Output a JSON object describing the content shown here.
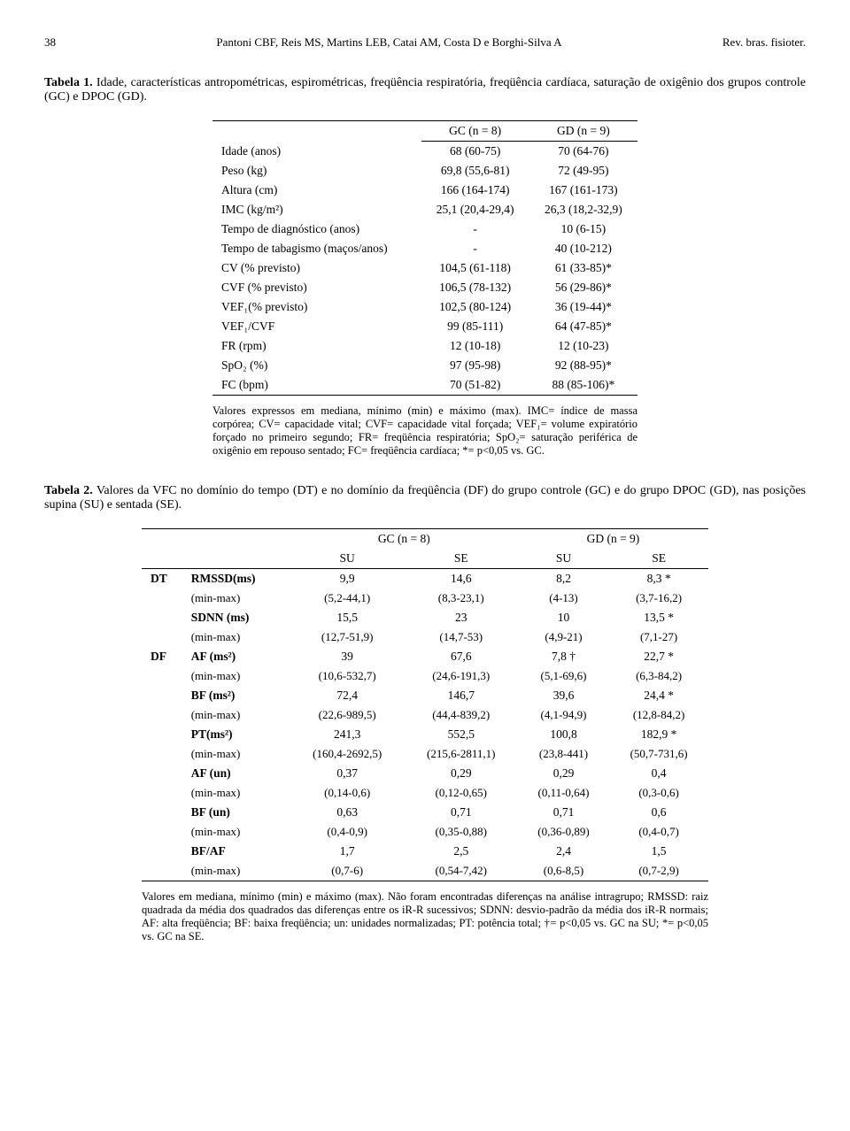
{
  "header": {
    "page_number": "38",
    "authors": "Pantoni CBF, Reis MS, Martins LEB, Catai AM, Costa D e Borghi-Silva A",
    "journal": "Rev. bras. fisioter."
  },
  "table1": {
    "label": "Tabela 1.",
    "caption": "Idade, características antropométricas, espirométricas, freqüência respiratória, freqüência cardíaca, saturação de oxigênio dos grupos controle (GC) e DPOC (GD).",
    "col_gc": "GC (n = 8)",
    "col_gd": "GD (n = 9)",
    "rows": [
      {
        "label": "Idade (anos)",
        "gc": "68 (60-75)",
        "gd": "70 (64-76)"
      },
      {
        "label": "Peso (kg)",
        "gc": "69,8 (55,6-81)",
        "gd": "72 (49-95)"
      },
      {
        "label": "Altura (cm)",
        "gc": "166 (164-174)",
        "gd": "167 (161-173)"
      },
      {
        "label": "IMC (kg/m²)",
        "gc": "25,1 (20,4-29,4)",
        "gd": "26,3 (18,2-32,9)"
      },
      {
        "label": "Tempo de diagnóstico (anos)",
        "gc": "-",
        "gd": "10 (6-15)"
      },
      {
        "label": "Tempo de tabagismo (maços/anos)",
        "gc": "-",
        "gd": "40 (10-212)"
      },
      {
        "label": "CV (% previsto)",
        "gc": "104,5 (61-118)",
        "gd": "61 (33-85)*"
      },
      {
        "label": "CVF (% previsto)",
        "gc": "106,5 (78-132)",
        "gd": "56 (29-86)*"
      },
      {
        "label": "VEF₁(% previsto)",
        "gc": "102,5 (80-124)",
        "gd": "36 (19-44)*"
      },
      {
        "label": "VEF₁/CVF",
        "gc": "99 (85-111)",
        "gd": "64 (47-85)*"
      },
      {
        "label": "FR (rpm)",
        "gc": "12 (10-18)",
        "gd": "12 (10-23)"
      },
      {
        "label": "SpO₂ (%)",
        "gc": "97 (95-98)",
        "gd": "92 (88-95)*"
      },
      {
        "label": "FC (bpm)",
        "gc": "70 (51-82)",
        "gd": "88 (85-106)*"
      }
    ],
    "footnote": "Valores expressos em mediana, mínimo (min) e máximo (max). IMC= índice de massa corpórea; CV= capacidade vital; CVF= capacidade vital forçada; VEF₁= volume expiratório forçado no primeiro segundo; FR= freqüência respiratória; SpO₂= saturação periférica de oxigênio em repouso sentado; FC= freqüência cardíaca; *= p<0,05 vs. GC."
  },
  "table2": {
    "label": "Tabela 2.",
    "caption": "Valores da VFC no domínio do tempo (DT) e no domínio da freqüência (DF) do grupo controle (GC) e do grupo DPOC (GD), nas posições supina (SU) e sentada (SE).",
    "col_gc": "GC  (n = 8)",
    "col_gd": "GD (n = 9)",
    "subcols": {
      "su": "SU",
      "se": "SE"
    },
    "section_dt": "DT",
    "section_df": "DF",
    "minmax": "(min-max)",
    "dt_rows": [
      {
        "label": "RMSSD(ms)",
        "gcsu": "9,9",
        "gcse": "14,6",
        "gdsu": "8,2",
        "gdse": "8,3 *",
        "mm_gcsu": "(5,2-44,1)",
        "mm_gcse": "(8,3-23,1)",
        "mm_gdsu": "(4-13)",
        "mm_gdse": "(3,7-16,2)"
      },
      {
        "label": "SDNN (ms)",
        "gcsu": "15,5",
        "gcse": "23",
        "gdsu": "10",
        "gdse": "13,5 *",
        "mm_gcsu": "(12,7-51,9)",
        "mm_gcse": "(14,7-53)",
        "mm_gdsu": "(4,9-21)",
        "mm_gdse": "(7,1-27)"
      }
    ],
    "df_rows": [
      {
        "label": "AF (ms²)",
        "gcsu": "39",
        "gcse": "67,6",
        "gdsu": "7,8 †",
        "gdse": "22,7 *",
        "mm_gcsu": "(10,6-532,7)",
        "mm_gcse": "(24,6-191,3)",
        "mm_gdsu": "(5,1-69,6)",
        "mm_gdse": "(6,3-84,2)"
      },
      {
        "label": "BF (ms²)",
        "gcsu": "72,4",
        "gcse": "146,7",
        "gdsu": "39,6",
        "gdse": "24,4 *",
        "mm_gcsu": "(22,6-989,5)",
        "mm_gcse": "(44,4-839,2)",
        "mm_gdsu": "(4,1-94,9)",
        "mm_gdse": "(12,8-84,2)"
      },
      {
        "label": "PT(ms²)",
        "gcsu": "241,3",
        "gcse": "552,5",
        "gdsu": "100,8",
        "gdse": "182,9 *",
        "mm_gcsu": "(160,4-2692,5)",
        "mm_gcse": "(215,6-2811,1)",
        "mm_gdsu": "(23,8-441)",
        "mm_gdse": "(50,7-731,6)"
      },
      {
        "label": "AF (un)",
        "gcsu": "0,37",
        "gcse": "0,29",
        "gdsu": "0,29",
        "gdse": "0,4",
        "mm_gcsu": "(0,14-0,6)",
        "mm_gcse": "(0,12-0,65)",
        "mm_gdsu": "(0,11-0,64)",
        "mm_gdse": "(0,3-0,6)"
      },
      {
        "label": "BF (un)",
        "gcsu": "0,63",
        "gcse": "0,71",
        "gdsu": "0,71",
        "gdse": "0,6",
        "mm_gcsu": "(0,4-0,9)",
        "mm_gcse": "(0,35-0,88)",
        "mm_gdsu": "(0,36-0,89)",
        "mm_gdse": "(0,4-0,7)"
      },
      {
        "label": "BF/AF",
        "gcsu": "1,7",
        "gcse": "2,5",
        "gdsu": "2,4",
        "gdse": "1,5",
        "mm_gcsu": "(0,7-6)",
        "mm_gcse": "(0,54-7,42)",
        "mm_gdsu": "(0,6-8,5)",
        "mm_gdse": "(0,7-2,9)"
      }
    ],
    "footnote": "Valores em mediana, mínimo (min) e máximo (max). Não foram encontradas diferenças na análise intragrupo; RMSSD: raiz quadrada da média dos quadrados das diferenças entre os iR-R sucessivos; SDNN: desvio-padrão da média dos iR-R normais; AF: alta freqüência; BF: baixa freqüência; un: unidades normalizadas; PT: potência total; †= p<0,05 vs. GC na SU; *= p<0,05 vs. GC na SE."
  }
}
